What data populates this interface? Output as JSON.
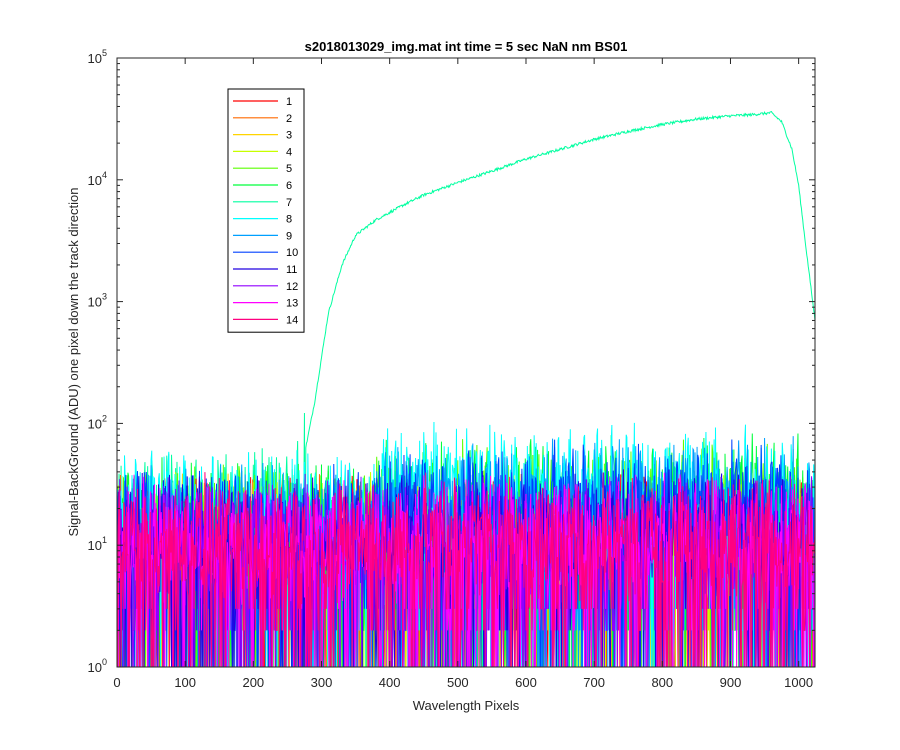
{
  "chart_data": {
    "type": "line",
    "title": "s2018013029_img.mat int time = 5 sec  NaN nm BS01",
    "xlabel": "Wavelength Pixels",
    "ylabel": "Signal-BackGround (ADU) one pixel down the track direction",
    "xlim": [
      0,
      1024
    ],
    "ylim": [
      1,
      100000
    ],
    "yscale": "log",
    "x_ticks": [
      "0",
      "100",
      "200",
      "300",
      "400",
      "500",
      "600",
      "700",
      "800",
      "900",
      "1000"
    ],
    "y_ticks": [
      {
        "base": "10",
        "exp": "0"
      },
      {
        "base": "10",
        "exp": "1"
      },
      {
        "base": "10",
        "exp": "2"
      },
      {
        "base": "10",
        "exp": "3"
      },
      {
        "base": "10",
        "exp": "4"
      },
      {
        "base": "10",
        "exp": "5"
      }
    ],
    "grid": false,
    "legend_position": "top-left",
    "series": [
      {
        "name": "1",
        "color": "#ff0000",
        "noise_level": 12
      },
      {
        "name": "2",
        "color": "#ff6a00",
        "noise_level": 12
      },
      {
        "name": "3",
        "color": "#ffd400",
        "noise_level": 12
      },
      {
        "name": "4",
        "color": "#c8ff00",
        "noise_level": 13
      },
      {
        "name": "5",
        "color": "#5cff00",
        "noise_level": 14
      },
      {
        "name": "6",
        "color": "#00ff3c",
        "noise_level": 16
      },
      {
        "name": "7",
        "color": "#00ffa0",
        "noise_level": 18,
        "peak_profile": [
          [
            0,
            18
          ],
          [
            255,
            20
          ],
          [
            270,
            40
          ],
          [
            290,
            150
          ],
          [
            310,
            800
          ],
          [
            330,
            2000
          ],
          [
            350,
            3500
          ],
          [
            380,
            4700
          ],
          [
            420,
            6200
          ],
          [
            450,
            7500
          ],
          [
            500,
            9500
          ],
          [
            550,
            11800
          ],
          [
            600,
            14800
          ],
          [
            650,
            17800
          ],
          [
            700,
            21500
          ],
          [
            750,
            25000
          ],
          [
            800,
            28500
          ],
          [
            850,
            31500
          ],
          [
            900,
            33500
          ],
          [
            930,
            34200
          ],
          [
            960,
            35500
          ],
          [
            975,
            30000
          ],
          [
            990,
            18000
          ],
          [
            1000,
            9000
          ],
          [
            1010,
            3000
          ],
          [
            1024,
            700
          ]
        ]
      },
      {
        "name": "8",
        "color": "#00ffff",
        "noise_level": 20
      },
      {
        "name": "9",
        "color": "#00a0ff",
        "noise_level": 15
      },
      {
        "name": "10",
        "color": "#0040ff",
        "noise_level": 14
      },
      {
        "name": "11",
        "color": "#2000e0",
        "noise_level": 13
      },
      {
        "name": "12",
        "color": "#9000ff",
        "noise_level": 12
      },
      {
        "name": "13",
        "color": "#ff00ff",
        "noise_level": 12
      },
      {
        "name": "14",
        "color": "#ff0080",
        "noise_level": 12
      }
    ]
  }
}
